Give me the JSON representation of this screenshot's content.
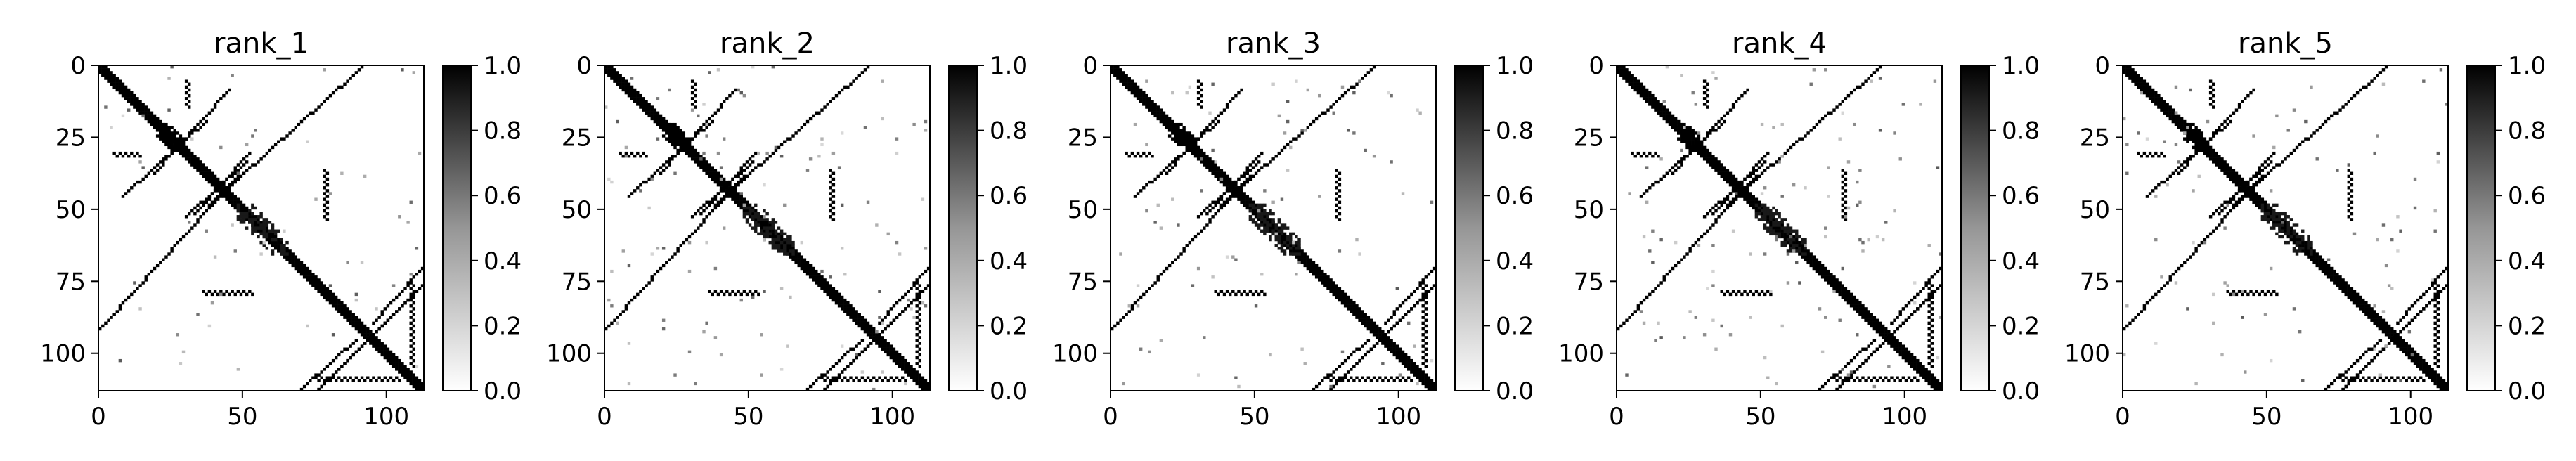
{
  "chart_data": [
    {
      "type": "heatmap",
      "title": "rank_1",
      "x_ticks": [
        "0",
        "50",
        "100"
      ],
      "y_ticks": [
        "0",
        "25",
        "50",
        "75",
        "100"
      ],
      "xlim": [
        0,
        113
      ],
      "ylim": [
        113,
        0
      ],
      "colorbar": {
        "range": [
          0.0,
          1.0
        ],
        "ticks": [
          "0.0",
          "0.2",
          "0.4",
          "0.6",
          "0.8",
          "1.0"
        ],
        "colormap": "Greys"
      },
      "pattern": {
        "size": 113,
        "diagonal": true,
        "contact_bands": [
          [
            5,
            25
          ],
          [
            25,
            45
          ],
          [
            48,
            68
          ],
          [
            75,
            110
          ]
        ],
        "noise": 0.1
      }
    },
    {
      "type": "heatmap",
      "title": "rank_2",
      "x_ticks": [
        "0",
        "50",
        "100"
      ],
      "y_ticks": [
        "0",
        "25",
        "50",
        "75",
        "100"
      ],
      "xlim": [
        0,
        113
      ],
      "ylim": [
        113,
        0
      ],
      "colorbar": {
        "range": [
          0.0,
          1.0
        ],
        "ticks": [
          "0.0",
          "0.2",
          "0.4",
          "0.6",
          "0.8",
          "1.0"
        ],
        "colormap": "Greys"
      },
      "pattern": {
        "size": 113,
        "diagonal": true,
        "contact_bands": [
          [
            5,
            25
          ],
          [
            25,
            45
          ],
          [
            48,
            68
          ],
          [
            75,
            110
          ]
        ],
        "noise": 0.2
      }
    },
    {
      "type": "heatmap",
      "title": "rank_3",
      "x_ticks": [
        "0",
        "50",
        "100"
      ],
      "y_ticks": [
        "0",
        "25",
        "50",
        "75",
        "100"
      ],
      "xlim": [
        0,
        113
      ],
      "ylim": [
        113,
        0
      ],
      "colorbar": {
        "range": [
          0.0,
          1.0
        ],
        "ticks": [
          "0.0",
          "0.2",
          "0.4",
          "0.6",
          "0.8",
          "1.0"
        ],
        "colormap": "Greys"
      },
      "pattern": {
        "size": 113,
        "diagonal": true,
        "contact_bands": [
          [
            5,
            25
          ],
          [
            25,
            45
          ],
          [
            48,
            68
          ],
          [
            75,
            110
          ]
        ],
        "noise": 0.15
      }
    },
    {
      "type": "heatmap",
      "title": "rank_4",
      "x_ticks": [
        "0",
        "50",
        "100"
      ],
      "y_ticks": [
        "0",
        "25",
        "50",
        "75",
        "100"
      ],
      "xlim": [
        0,
        113
      ],
      "ylim": [
        113,
        0
      ],
      "colorbar": {
        "range": [
          0.0,
          1.0
        ],
        "ticks": [
          "0.0",
          "0.2",
          "0.4",
          "0.6",
          "0.8",
          "1.0"
        ],
        "colormap": "Greys"
      },
      "pattern": {
        "size": 113,
        "diagonal": true,
        "contact_bands": [
          [
            5,
            25
          ],
          [
            25,
            45
          ],
          [
            48,
            68
          ],
          [
            75,
            110
          ]
        ],
        "noise": 0.2
      }
    },
    {
      "type": "heatmap",
      "title": "rank_5",
      "x_ticks": [
        "0",
        "50",
        "100"
      ],
      "y_ticks": [
        "0",
        "25",
        "50",
        "75",
        "100"
      ],
      "xlim": [
        0,
        113
      ],
      "ylim": [
        113,
        0
      ],
      "colorbar": {
        "range": [
          0.0,
          1.0
        ],
        "ticks": [
          "0.0",
          "0.2",
          "0.4",
          "0.6",
          "0.8",
          "1.0"
        ],
        "colormap": "Greys"
      },
      "pattern": {
        "size": 113,
        "diagonal": true,
        "contact_bands": [
          [
            5,
            25
          ],
          [
            25,
            45
          ],
          [
            48,
            68
          ],
          [
            75,
            110
          ]
        ],
        "noise": 0.15
      }
    }
  ]
}
